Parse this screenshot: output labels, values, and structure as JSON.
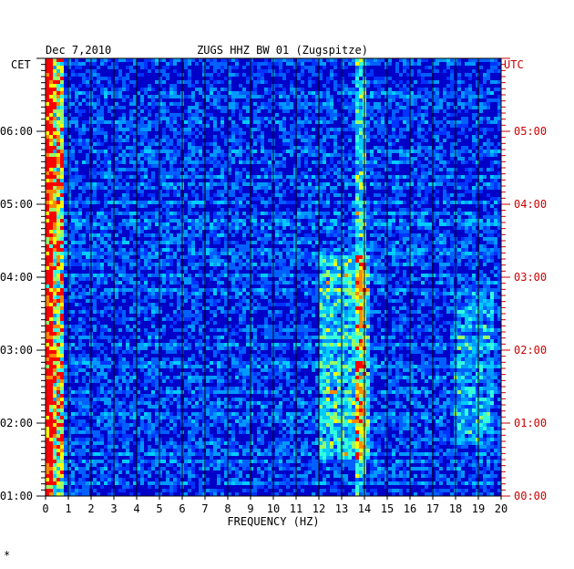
{
  "chart_data": {
    "type": "heatmap",
    "date": "Dec 7,2010",
    "station": "ZUGS HHZ BW 01 (Zugspitze)",
    "xlabel": "FREQUENCY (HZ)",
    "xlim": [
      0,
      20
    ],
    "x_ticks": [
      "0",
      "1",
      "2",
      "3",
      "4",
      "5",
      "6",
      "7",
      "8",
      "9",
      "10",
      "11",
      "12",
      "13",
      "14",
      "15",
      "16",
      "17",
      "18",
      "19",
      "20"
    ],
    "left_axis_label": "CET",
    "right_axis_label": "UTC",
    "y_ticks_left": [
      "06:00",
      "05:00",
      "04:00",
      "03:00",
      "02:00",
      "01:00"
    ],
    "y_ticks_right": [
      "05:00",
      "04:00",
      "03:00",
      "02:00",
      "01:00",
      "00:00"
    ],
    "time_range_hours_cet": [
      1.0,
      7.0
    ],
    "colors": {
      "background": "#0000c8",
      "low": "#0022ff",
      "mid": "#00ccff",
      "high": "#ffff00",
      "peak": "#ff0000",
      "left_axis": "#000000",
      "right_axis": "#cc0000"
    },
    "energy_bands": [
      {
        "freq_hz": [
          0.0,
          0.8
        ],
        "intensity": "very high"
      },
      {
        "freq_hz": [
          12.0,
          14.2
        ],
        "intensity": "high",
        "time_cet": [
          1.5,
          4.3
        ]
      },
      {
        "freq_hz": [
          13.6,
          14.0
        ],
        "intensity": "high"
      },
      {
        "freq_hz": [
          18.0,
          19.6
        ],
        "intensity": "moderate",
        "time_cet": [
          1.7,
          3.8
        ]
      }
    ]
  }
}
